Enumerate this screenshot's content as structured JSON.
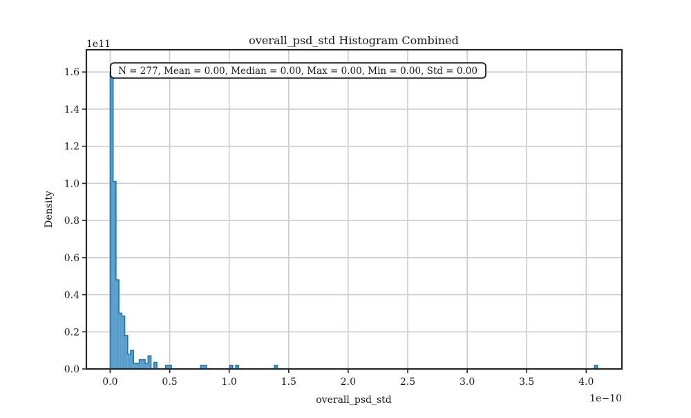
{
  "chart_data": {
    "type": "histogram",
    "title": "overall_psd_std Histogram Combined",
    "xlabel": "overall_psd_std",
    "ylabel": "Density",
    "x_scale_label": "1e−10",
    "y_scale_label": "1e11",
    "stats_box": "N = 277, Mean = 0.00, Median = 0.00, Max = 0.00, Min = 0.00, Std = 0.00",
    "xlim": [
      -0.2,
      4.3
    ],
    "ylim": [
      0,
      1.72
    ],
    "x_ticks": [
      0.0,
      0.5,
      1.0,
      1.5,
      2.0,
      2.5,
      3.0,
      3.5,
      4.0
    ],
    "x_tick_labels": [
      "0.0",
      "0.5",
      "1.0",
      "1.5",
      "2.0",
      "2.5",
      "3.0",
      "3.5",
      "4.0"
    ],
    "y_ticks": [
      0.0,
      0.2,
      0.4,
      0.6,
      0.8,
      1.0,
      1.2,
      1.4,
      1.6
    ],
    "y_tick_labels": [
      "0.0",
      "0.2",
      "0.4",
      "0.6",
      "0.8",
      "1.0",
      "1.2",
      "1.4",
      "1.6"
    ],
    "bin_width": 0.0245,
    "bins": [
      {
        "x0": 0.0,
        "value": 1.6
      },
      {
        "x0": 0.0245,
        "value": 1.01
      },
      {
        "x0": 0.049,
        "value": 0.48
      },
      {
        "x0": 0.0735,
        "value": 0.3
      },
      {
        "x0": 0.098,
        "value": 0.285
      },
      {
        "x0": 0.1225,
        "value": 0.18
      },
      {
        "x0": 0.147,
        "value": 0.08
      },
      {
        "x0": 0.1715,
        "value": 0.1
      },
      {
        "x0": 0.196,
        "value": 0.03
      },
      {
        "x0": 0.2205,
        "value": 0.03
      },
      {
        "x0": 0.245,
        "value": 0.05
      },
      {
        "x0": 0.2695,
        "value": 0.05
      },
      {
        "x0": 0.294,
        "value": 0.03
      },
      {
        "x0": 0.3185,
        "value": 0.07
      },
      {
        "x0": 0.343,
        "value": 0.0
      },
      {
        "x0": 0.3675,
        "value": 0.035
      },
      {
        "x0": 0.466,
        "value": 0.02
      },
      {
        "x0": 0.49,
        "value": 0.02
      },
      {
        "x0": 0.76,
        "value": 0.02
      },
      {
        "x0": 0.785,
        "value": 0.02
      },
      {
        "x0": 1.005,
        "value": 0.02
      },
      {
        "x0": 1.055,
        "value": 0.02
      },
      {
        "x0": 1.38,
        "value": 0.02
      },
      {
        "x0": 4.07,
        "value": 0.02
      }
    ],
    "bar_color": "#5a9ecb",
    "edge_color": "#1f77b4",
    "grid": true
  }
}
